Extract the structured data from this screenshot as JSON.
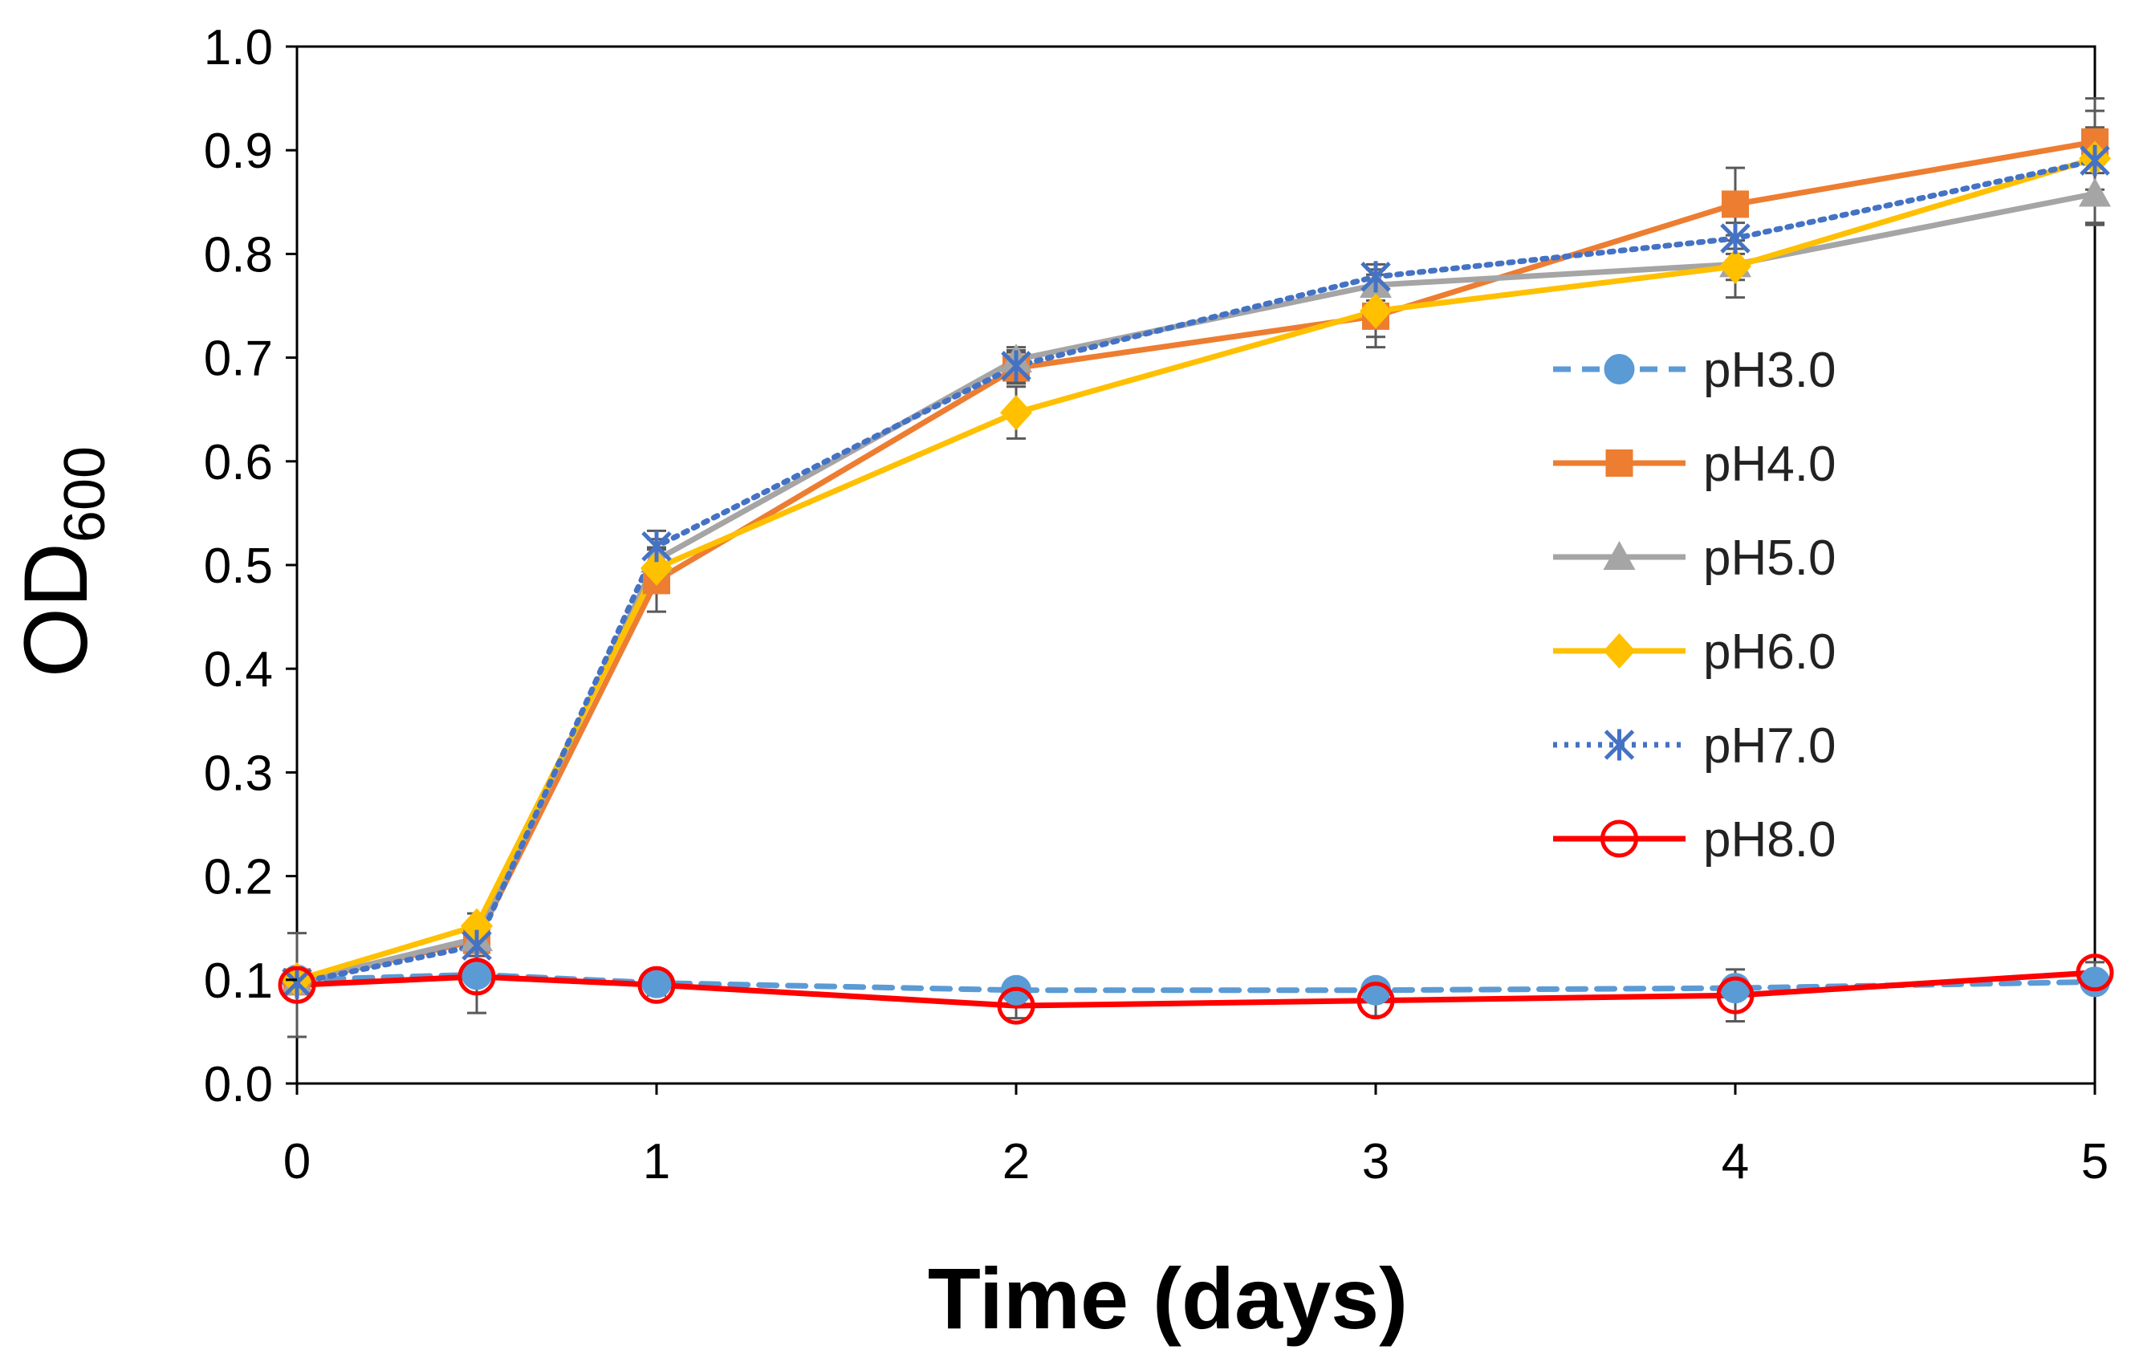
{
  "chart_data": {
    "type": "line",
    "title": "",
    "xlabel": "Time (days)",
    "ylabel": "OD",
    "ylabel_subscript": "600",
    "xlim": [
      0,
      5
    ],
    "ylim": [
      0,
      1.0
    ],
    "xticks": [
      0,
      1,
      2,
      3,
      4,
      5
    ],
    "xtick_labels": [
      "0",
      "1",
      "2",
      "3",
      "4",
      "5"
    ],
    "yticks": [
      0,
      0.1,
      0.2,
      0.3,
      0.4,
      0.5,
      0.6,
      0.7,
      0.8,
      0.9,
      1.0
    ],
    "ytick_labels": [
      "0.0",
      "0.1",
      "0.2",
      "0.3",
      "0.4",
      "0.5",
      "0.6",
      "0.7",
      "0.8",
      "0.9",
      "1.0"
    ],
    "grid": false,
    "legend_position": "right",
    "x": [
      0,
      0.5,
      1,
      2,
      3,
      4,
      5
    ],
    "series": [
      {
        "name": "pH3.0",
        "color": "#5B9BD5",
        "dash": "dashed",
        "marker": "circle-filled",
        "values": [
          0.1,
          0.105,
          0.097,
          0.09,
          0.09,
          0.092,
          0.098
        ],
        "errors": [
          0.01,
          0.01,
          0.01,
          0.008,
          0.008,
          0.008,
          0.01
        ]
      },
      {
        "name": "pH4.0",
        "color": "#ED7D31",
        "dash": "solid",
        "marker": "square",
        "values": [
          0.098,
          0.138,
          0.485,
          0.69,
          0.74,
          0.848,
          0.908
        ],
        "errors": [
          0.01,
          0.01,
          0.03,
          0.015,
          0.02,
          0.035,
          0.03
        ]
      },
      {
        "name": "pH5.0",
        "color": "#A5A5A5",
        "dash": "solid",
        "marker": "triangle",
        "values": [
          0.098,
          0.14,
          0.505,
          0.698,
          0.77,
          0.79,
          0.858
        ],
        "errors": [
          0.01,
          0.01,
          0.02,
          0.012,
          0.015,
          0.015,
          0.03
        ]
      },
      {
        "name": "pH6.0",
        "color": "#FFC000",
        "dash": "solid",
        "marker": "diamond",
        "values": [
          0.1,
          0.152,
          0.497,
          0.647,
          0.745,
          0.788,
          0.892
        ],
        "errors": [
          0.01,
          0.012,
          0.02,
          0.025,
          0.035,
          0.03,
          0.03
        ]
      },
      {
        "name": "pH7.0",
        "color": "#4472C4",
        "dash": "dotted",
        "marker": "star",
        "values": [
          0.097,
          0.133,
          0.518,
          0.692,
          0.778,
          0.815,
          0.89
        ],
        "errors": [
          0.01,
          0.01,
          0.015,
          0.015,
          0.012,
          0.015,
          0.06
        ]
      },
      {
        "name": "pH8.0",
        "color": "#FF0000",
        "dash": "solid",
        "marker": "circle-open",
        "values": [
          0.095,
          0.103,
          0.095,
          0.075,
          0.08,
          0.085,
          0.107
        ],
        "errors": [
          0.05,
          0.035,
          0.01,
          0.012,
          0.015,
          0.025,
          0.01
        ]
      }
    ]
  }
}
